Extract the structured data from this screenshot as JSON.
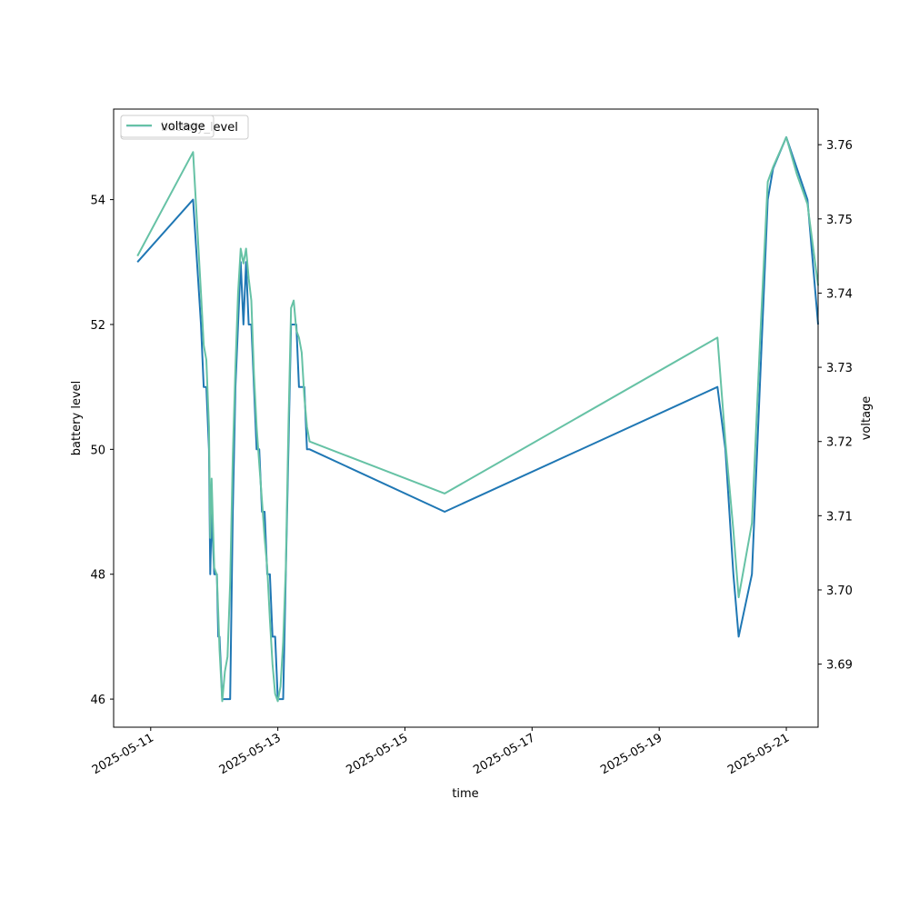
{
  "chart_data": {
    "type": "line",
    "title": "",
    "xlabel": "time",
    "ylabel_left": "battery level",
    "ylabel_right": "voltage",
    "x_ticks": [
      "2025-05-11",
      "2025-05-13",
      "2025-05-15",
      "2025-05-17",
      "2025-05-19",
      "2025-05-21"
    ],
    "x_range": [
      "2025-05-10T10:00",
      "2025-05-21T12:00"
    ],
    "y_left_ticks": [
      46,
      48,
      50,
      52,
      54
    ],
    "y_left_range": [
      45.55,
      55.45
    ],
    "y_right_ticks": [
      3.69,
      3.7,
      3.71,
      3.72,
      3.73,
      3.74,
      3.75,
      3.76
    ],
    "y_right_range": [
      3.6815,
      3.7648
    ],
    "legend": {
      "placement": "upper left",
      "entries": [
        "battery_level",
        "voltage"
      ]
    },
    "series": [
      {
        "name": "battery_level",
        "axis": "left",
        "color": "#1f77b4",
        "points": [
          [
            "2025-05-10T19:00",
            53
          ],
          [
            "2025-05-11T16:00",
            54
          ],
          [
            "2025-05-11T19:00",
            52
          ],
          [
            "2025-05-11T20:00",
            51
          ],
          [
            "2025-05-11T21:00",
            51
          ],
          [
            "2025-05-11T22:00",
            50
          ],
          [
            "2025-05-11T22:30",
            48
          ],
          [
            "2025-05-11T23:00",
            49
          ],
          [
            "2025-05-12T00:00",
            48
          ],
          [
            "2025-05-12T01:00",
            48
          ],
          [
            "2025-05-12T01:30",
            47
          ],
          [
            "2025-05-12T02:00",
            47
          ],
          [
            "2025-05-12T03:00",
            46
          ],
          [
            "2025-05-12T04:00",
            46
          ],
          [
            "2025-05-12T05:00",
            46
          ],
          [
            "2025-05-12T06:00",
            46
          ],
          [
            "2025-05-12T07:00",
            49
          ],
          [
            "2025-05-12T08:00",
            51
          ],
          [
            "2025-05-12T09:00",
            52
          ],
          [
            "2025-05-12T10:00",
            53
          ],
          [
            "2025-05-12T11:00",
            52
          ],
          [
            "2025-05-12T12:00",
            53
          ],
          [
            "2025-05-12T13:00",
            52
          ],
          [
            "2025-05-12T14:00",
            52
          ],
          [
            "2025-05-12T15:00",
            51
          ],
          [
            "2025-05-12T16:00",
            50
          ],
          [
            "2025-05-12T17:00",
            50
          ],
          [
            "2025-05-12T18:00",
            49
          ],
          [
            "2025-05-12T19:00",
            49
          ],
          [
            "2025-05-12T20:00",
            48
          ],
          [
            "2025-05-12T21:00",
            48
          ],
          [
            "2025-05-12T22:00",
            47
          ],
          [
            "2025-05-12T23:00",
            47
          ],
          [
            "2025-05-13T00:00",
            46
          ],
          [
            "2025-05-13T01:00",
            46
          ],
          [
            "2025-05-13T02:00",
            46
          ],
          [
            "2025-05-13T03:00",
            48
          ],
          [
            "2025-05-13T04:00",
            50
          ],
          [
            "2025-05-13T05:00",
            52
          ],
          [
            "2025-05-13T06:00",
            52
          ],
          [
            "2025-05-13T07:00",
            52
          ],
          [
            "2025-05-13T08:00",
            51
          ],
          [
            "2025-05-13T09:00",
            51
          ],
          [
            "2025-05-13T10:00",
            51
          ],
          [
            "2025-05-13T11:00",
            50
          ],
          [
            "2025-05-13T12:00",
            50
          ],
          [
            "2025-05-15T15:00",
            49
          ],
          [
            "2025-05-19T22:00",
            51
          ],
          [
            "2025-05-20T01:00",
            50
          ],
          [
            "2025-05-20T04:00",
            48
          ],
          [
            "2025-05-20T06:00",
            47
          ],
          [
            "2025-05-20T11:00",
            48
          ],
          [
            "2025-05-20T14:00",
            51
          ],
          [
            "2025-05-20T17:00",
            54
          ],
          [
            "2025-05-20T19:00",
            54.5
          ],
          [
            "2025-05-21T00:00",
            55
          ],
          [
            "2025-05-21T04:00",
            54.5
          ],
          [
            "2025-05-21T08:00",
            54
          ],
          [
            "2025-05-21T12:00",
            52
          ]
        ]
      },
      {
        "name": "voltage",
        "axis": "right",
        "color": "#66c2a5",
        "points": [
          [
            "2025-05-10T19:00",
            3.745
          ],
          [
            "2025-05-11T16:00",
            3.759
          ],
          [
            "2025-05-11T19:00",
            3.74
          ],
          [
            "2025-05-11T20:00",
            3.733
          ],
          [
            "2025-05-11T21:00",
            3.731
          ],
          [
            "2025-05-11T22:00",
            3.722
          ],
          [
            "2025-05-11T22:30",
            3.707
          ],
          [
            "2025-05-11T23:00",
            3.715
          ],
          [
            "2025-05-12T00:00",
            3.703
          ],
          [
            "2025-05-12T01:00",
            3.702
          ],
          [
            "2025-05-12T01:30",
            3.697
          ],
          [
            "2025-05-12T02:00",
            3.692
          ],
          [
            "2025-05-12T03:00",
            3.685
          ],
          [
            "2025-05-12T04:00",
            3.689
          ],
          [
            "2025-05-12T05:00",
            3.691
          ],
          [
            "2025-05-12T06:00",
            3.701
          ],
          [
            "2025-05-12T07:00",
            3.718
          ],
          [
            "2025-05-12T08:00",
            3.73
          ],
          [
            "2025-05-12T09:00",
            3.74
          ],
          [
            "2025-05-12T10:00",
            3.746
          ],
          [
            "2025-05-12T11:00",
            3.744
          ],
          [
            "2025-05-12T12:00",
            3.746
          ],
          [
            "2025-05-12T13:00",
            3.742
          ],
          [
            "2025-05-12T14:00",
            3.739
          ],
          [
            "2025-05-12T15:00",
            3.729
          ],
          [
            "2025-05-12T16:00",
            3.722
          ],
          [
            "2025-05-12T17:00",
            3.717
          ],
          [
            "2025-05-12T18:00",
            3.712
          ],
          [
            "2025-05-12T19:00",
            3.707
          ],
          [
            "2025-05-12T20:00",
            3.703
          ],
          [
            "2025-05-12T21:00",
            3.696
          ],
          [
            "2025-05-12T22:00",
            3.69
          ],
          [
            "2025-05-12T23:00",
            3.686
          ],
          [
            "2025-05-13T00:00",
            3.685
          ],
          [
            "2025-05-13T01:00",
            3.687
          ],
          [
            "2025-05-13T02:00",
            3.693
          ],
          [
            "2025-05-13T03:00",
            3.703
          ],
          [
            "2025-05-13T04:00",
            3.722
          ],
          [
            "2025-05-13T05:00",
            3.738
          ],
          [
            "2025-05-13T06:00",
            3.739
          ],
          [
            "2025-05-13T07:00",
            3.735
          ],
          [
            "2025-05-13T08:00",
            3.734
          ],
          [
            "2025-05-13T09:00",
            3.732
          ],
          [
            "2025-05-13T10:00",
            3.726
          ],
          [
            "2025-05-13T11:00",
            3.722
          ],
          [
            "2025-05-13T12:00",
            3.72
          ],
          [
            "2025-05-15T15:00",
            3.713
          ],
          [
            "2025-05-19T22:00",
            3.734
          ],
          [
            "2025-05-20T01:00",
            3.72
          ],
          [
            "2025-05-20T04:00",
            3.708
          ],
          [
            "2025-05-20T06:00",
            3.699
          ],
          [
            "2025-05-20T11:00",
            3.709
          ],
          [
            "2025-05-20T14:00",
            3.733
          ],
          [
            "2025-05-20T17:00",
            3.755
          ],
          [
            "2025-05-20T19:00",
            3.757
          ],
          [
            "2025-05-21T00:00",
            3.761
          ],
          [
            "2025-05-21T04:00",
            3.756
          ],
          [
            "2025-05-21T08:00",
            3.752
          ],
          [
            "2025-05-21T12:00",
            3.741
          ]
        ]
      }
    ]
  }
}
